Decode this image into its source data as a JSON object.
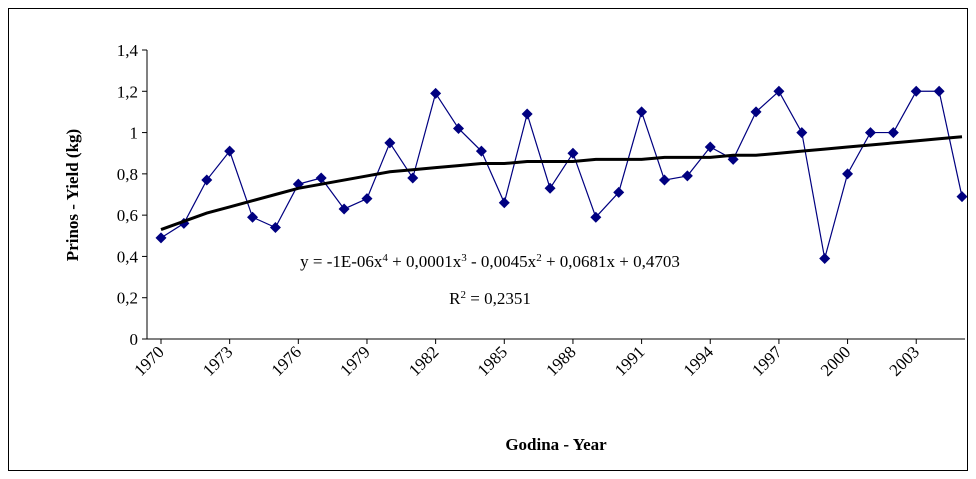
{
  "chart_data": {
    "type": "line",
    "x_label": "Godina - Year",
    "y_label": "Prinos - Yield (kg)",
    "categories": [
      "1970",
      null,
      null,
      "1973",
      null,
      null,
      "1976",
      null,
      null,
      "1979",
      null,
      null,
      "1982",
      null,
      null,
      "1985",
      null,
      null,
      "1988",
      null,
      null,
      "1991",
      null,
      null,
      "1994",
      null,
      null,
      "1997",
      null,
      null,
      "2000",
      null,
      null,
      "2003",
      null,
      null
    ],
    "series": [
      {
        "color": "#000080",
        "marker": "diamond",
        "values": [
          0.49,
          0.56,
          0.77,
          0.91,
          0.59,
          0.54,
          0.75,
          0.78,
          0.63,
          0.68,
          0.95,
          0.78,
          1.19,
          1.02,
          0.91,
          0.66,
          1.09,
          0.73,
          0.9,
          0.59,
          0.71,
          1.1,
          0.77,
          0.79,
          0.93,
          0.87,
          1.1,
          1.2,
          1.0,
          0.39,
          0.8,
          1.0,
          1.0,
          1.2,
          1.2,
          0.69
        ]
      },
      {
        "color": "#000000",
        "marker": "none",
        "values": [
          0.53,
          0.57,
          0.61,
          0.64,
          0.67,
          0.7,
          0.73,
          0.75,
          0.77,
          0.79,
          0.81,
          0.82,
          0.83,
          0.84,
          0.85,
          0.85,
          0.86,
          0.86,
          0.86,
          0.87,
          0.87,
          0.87,
          0.88,
          0.88,
          0.88,
          0.89,
          0.89,
          0.9,
          0.91,
          0.92,
          0.93,
          0.94,
          0.95,
          0.96,
          0.97,
          0.98
        ]
      }
    ],
    "ylim": [
      0,
      1.4
    ],
    "yticks": [
      0,
      {
        "value": 0.2,
        "label": "0,2"
      },
      {
        "value": 0.4,
        "label": "0,4"
      },
      {
        "value": 0.6,
        "label": "0,6"
      },
      {
        "value": 0.8,
        "label": "0,8"
      },
      1,
      {
        "value": 1.2,
        "label": "1,2"
      },
      {
        "value": 1.4,
        "label": "1,4"
      }
    ],
    "grid": false,
    "annotations": {
      "equation": [
        "y = -1E-06x",
        "4",
        " + 0,0001x",
        "3",
        " - 0,0045x",
        "2",
        " + 0,0681x + 0,4703"
      ],
      "r2": [
        "R",
        "2",
        " = 0,2351"
      ]
    }
  }
}
